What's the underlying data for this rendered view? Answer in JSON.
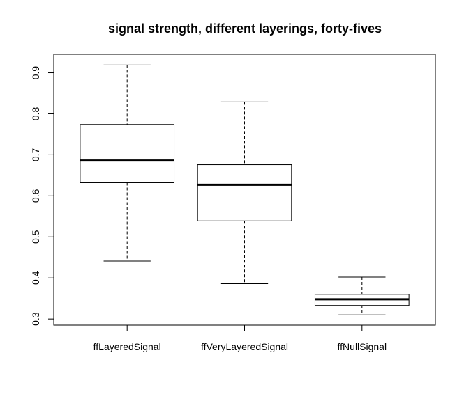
{
  "chart_data": {
    "type": "boxplot",
    "title": "signal strength, different layerings, forty-fives",
    "xlabel": "",
    "ylabel": "",
    "ylim": [
      0.285,
      0.945
    ],
    "yticks": [
      "0.3",
      "0.4",
      "0.5",
      "0.6",
      "0.7",
      "0.8",
      "0.9"
    ],
    "categories": [
      "ffLayeredSignal",
      "ffVeryLayeredSignal",
      "ffNullSignal"
    ],
    "boxes": [
      {
        "min": 0.441,
        "q1": 0.632,
        "median": 0.686,
        "q3": 0.774,
        "max": 0.919
      },
      {
        "min": 0.386,
        "q1": 0.539,
        "median": 0.627,
        "q3": 0.676,
        "max": 0.829
      },
      {
        "min": 0.31,
        "q1": 0.333,
        "median": 0.348,
        "q3": 0.36,
        "max": 0.402
      }
    ],
    "colors": {
      "box_fill": "#ffffff",
      "stroke": "#000000"
    }
  }
}
